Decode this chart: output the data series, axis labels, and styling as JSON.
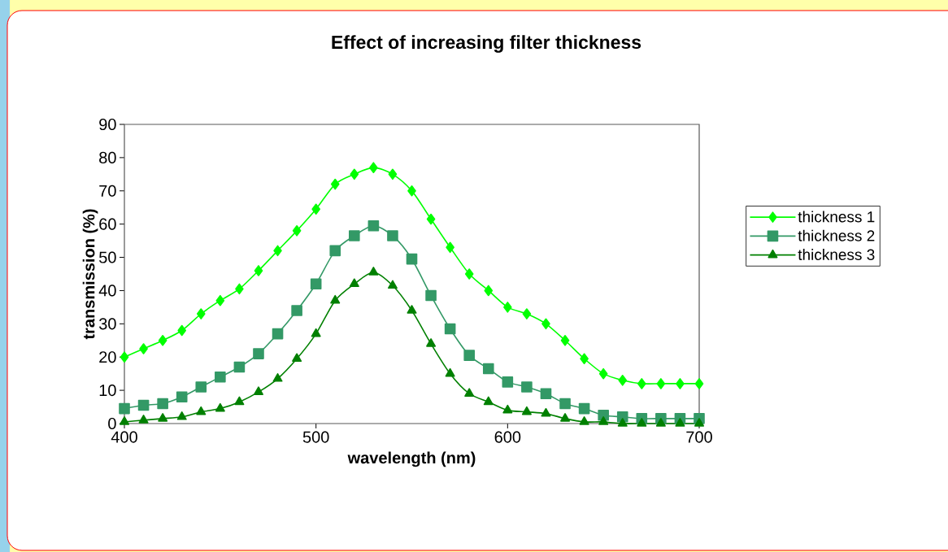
{
  "chart_data": {
    "type": "line",
    "title": "Effect of increasing filter thickness",
    "xlabel": "wavelength (nm)",
    "ylabel": "transmission (%)",
    "x": [
      400,
      410,
      420,
      430,
      440,
      450,
      460,
      470,
      480,
      490,
      500,
      510,
      520,
      530,
      540,
      550,
      560,
      570,
      580,
      590,
      600,
      610,
      620,
      630,
      640,
      650,
      660,
      670,
      680,
      690,
      700
    ],
    "series": [
      {
        "name": "thickness 1",
        "color": "#00ff00",
        "marker": "diamond",
        "values": [
          20,
          22.5,
          25,
          28,
          33,
          37,
          40.5,
          46,
          52,
          58,
          64.5,
          72,
          75,
          77,
          75,
          70,
          61.5,
          53,
          45,
          40,
          35,
          33,
          30,
          25,
          19.5,
          15,
          13,
          12,
          12,
          12,
          12
        ]
      },
      {
        "name": "thickness 2",
        "color": "#339966",
        "marker": "square",
        "values": [
          4.5,
          5.5,
          6,
          8,
          11,
          14,
          17,
          21,
          27,
          34,
          42,
          52,
          56.5,
          59.5,
          56.5,
          49.5,
          38.5,
          28.5,
          20.5,
          16.5,
          12.5,
          11,
          9,
          6,
          4.5,
          2.5,
          2,
          1.5,
          1.5,
          1.5,
          1.5
        ]
      },
      {
        "name": "thickness 3",
        "color": "#008000",
        "marker": "triangle",
        "values": [
          0.5,
          1,
          1.5,
          2,
          3.5,
          4.5,
          6.5,
          9.5,
          13.5,
          19.5,
          27,
          37,
          42,
          45.5,
          41.5,
          34,
          24,
          15,
          9,
          6.5,
          4,
          3.5,
          3,
          1.5,
          0.5,
          0.5,
          0,
          0,
          0,
          0,
          0
        ]
      }
    ],
    "xlim": [
      400,
      700
    ],
    "ylim": [
      0,
      90
    ],
    "xticks": [
      400,
      500,
      600,
      700
    ],
    "yticks": [
      0,
      10,
      20,
      30,
      40,
      50,
      60,
      70,
      80,
      90
    ],
    "legend": "right",
    "line_style": "solid"
  }
}
